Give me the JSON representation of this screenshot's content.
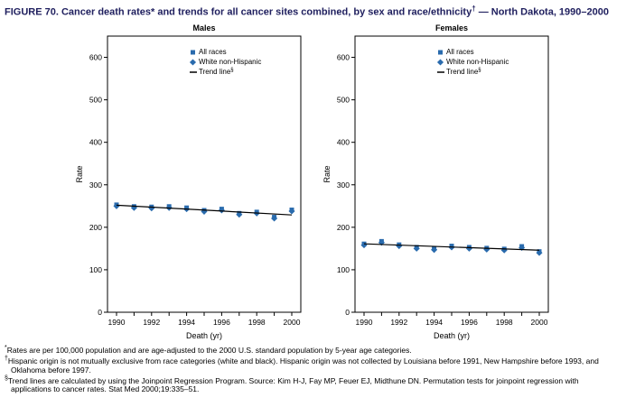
{
  "title": {
    "pre": "FIGURE 70. Cancer death rates* and trends for all cancer sites combined, by sex and race/ethnicity",
    "sup": "†",
    "post": " — North Dakota, 1990–2000"
  },
  "colors": {
    "marker": "#2a6bad",
    "trend": "#000000",
    "title": "#20205f"
  },
  "chart_data": [
    {
      "type": "scatter",
      "title": "Males",
      "xlabel": "Death (yr)",
      "ylabel": "Rate",
      "x": [
        1990,
        1991,
        1992,
        1993,
        1994,
        1995,
        1996,
        1997,
        1998,
        1999,
        2000
      ],
      "xticks_labeled": [
        1990,
        1992,
        1994,
        1996,
        1998,
        2000
      ],
      "ylim": [
        0,
        650
      ],
      "yticks": [
        0,
        100,
        200,
        300,
        400,
        500,
        600
      ],
      "grid": false,
      "legend_position": "upper-center-right-inside",
      "series": [
        {
          "name": "All races",
          "marker": "square",
          "values": [
            253,
            249,
            248,
            249,
            246,
            240,
            243,
            233,
            236,
            224,
            241
          ]
        },
        {
          "name": "White non-Hispanic",
          "marker": "diamond",
          "values": [
            250,
            246,
            245,
            246,
            243,
            237,
            240,
            230,
            233,
            221,
            238
          ]
        },
        {
          "name": "Trend line",
          "sup": "§",
          "marker": "line",
          "trend": [
            252,
            229
          ]
        }
      ]
    },
    {
      "type": "scatter",
      "title": "Females",
      "xlabel": "Death (yr)",
      "ylabel": "Rate",
      "x": [
        1990,
        1991,
        1992,
        1993,
        1994,
        1995,
        1996,
        1997,
        1998,
        1999,
        2000
      ],
      "xticks_labeled": [
        1990,
        1992,
        1994,
        1996,
        1998,
        2000
      ],
      "ylim": [
        0,
        650
      ],
      "yticks": [
        0,
        100,
        200,
        300,
        400,
        500,
        600
      ],
      "grid": false,
      "legend_position": "upper-center-right-inside",
      "series": [
        {
          "name": "All races",
          "marker": "square",
          "values": [
            161,
            167,
            159,
            153,
            150,
            156,
            153,
            151,
            149,
            155,
            143
          ]
        },
        {
          "name": "White non-Hispanic",
          "marker": "diamond",
          "values": [
            158,
            164,
            156,
            150,
            147,
            153,
            150,
            148,
            146,
            152,
            140
          ]
        },
        {
          "name": "Trend line",
          "sup": "§",
          "marker": "line",
          "trend": [
            161,
            146
          ]
        }
      ]
    }
  ],
  "footnotes": [
    {
      "marker": "*",
      "text": "Rates are per 100,000 population and are age-adjusted to the 2000 U.S. standard population by 5-year age categories."
    },
    {
      "marker": "†",
      "text": "Hispanic origin is not mutually exclusive from race categories (white and black). Hispanic origin was not collected by Louisiana before 1991, New Hampshire before 1993, and Oklahoma before 1997."
    },
    {
      "marker": "§",
      "text": "Trend lines are calculated by using the Joinpoint Regression Program. Source: Kim H-J, Fay MP, Feuer EJ, Midthune DN. Permutation tests for joinpoint regression with applications to cancer rates. Stat Med 2000;19:335–51."
    }
  ]
}
